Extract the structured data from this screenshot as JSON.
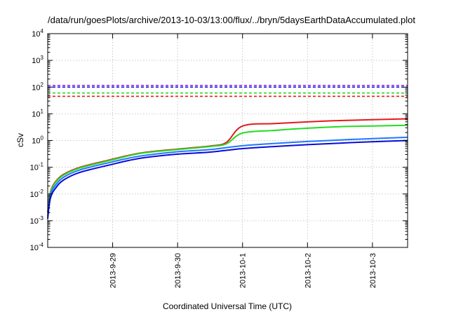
{
  "chart_data": {
    "type": "line",
    "title": "/data/run/goesPlots/archive/2013-10-03/13:00/flux/../bryn/5daysEarthDataAccumulated.plot",
    "xlabel": "Coordinated Universal Time (UTC)",
    "ylabel": "cSv",
    "yscale": "log",
    "ylim": [
      0.0001,
      10000
    ],
    "xlim": [
      "2013-09-28 00:00",
      "2013-10-03 13:00"
    ],
    "grid": true,
    "x_ticks": [
      "2013-9-29",
      "2013-9-30",
      "2013-10-1",
      "2013-10-2",
      "2013-10-3"
    ],
    "y_ticks": [
      {
        "value": 0.0001,
        "base": "10",
        "exp": "-4"
      },
      {
        "value": 0.001,
        "base": "10",
        "exp": "-3"
      },
      {
        "value": 0.01,
        "base": "10",
        "exp": "-2"
      },
      {
        "value": 0.1,
        "base": "10",
        "exp": "-1"
      },
      {
        "value": 1,
        "base": "10",
        "exp": "0"
      },
      {
        "value": 10,
        "base": "10",
        "exp": "1"
      },
      {
        "value": 100,
        "base": "10",
        "exp": "2"
      },
      {
        "value": 1000,
        "base": "10",
        "exp": "3"
      },
      {
        "value": 10000,
        "base": "10",
        "exp": "4"
      }
    ],
    "series": [
      {
        "color": "#e31a1c",
        "style": "solid",
        "points": [
          [
            "2013-09-28 00:00",
            0.002
          ],
          [
            "2013-09-28 01:00",
            0.012
          ],
          [
            "2013-09-28 03:00",
            0.03
          ],
          [
            "2013-09-28 06:00",
            0.055
          ],
          [
            "2013-09-28 12:00",
            0.1
          ],
          [
            "2013-09-29 00:00",
            0.2
          ],
          [
            "2013-09-29 06:00",
            0.28
          ],
          [
            "2013-09-29 12:00",
            0.36
          ],
          [
            "2013-09-30 00:00",
            0.48
          ],
          [
            "2013-09-30 12:00",
            0.62
          ],
          [
            "2013-09-30 18:00",
            0.85
          ],
          [
            "2013-10-01 00:00",
            3.5
          ],
          [
            "2013-10-01 12:00",
            4.3
          ],
          [
            "2013-10-02 00:00",
            5.0
          ],
          [
            "2013-10-02 12:00",
            5.6
          ],
          [
            "2013-10-03 00:00",
            6.0
          ],
          [
            "2013-10-03 13:00",
            6.5
          ]
        ]
      },
      {
        "color": "#22dd22",
        "style": "solid",
        "points": [
          [
            "2013-09-28 00:00",
            0.002
          ],
          [
            "2013-09-28 01:00",
            0.011
          ],
          [
            "2013-09-28 03:00",
            0.028
          ],
          [
            "2013-09-28 06:00",
            0.052
          ],
          [
            "2013-09-28 12:00",
            0.095
          ],
          [
            "2013-09-29 00:00",
            0.19
          ],
          [
            "2013-09-29 06:00",
            0.27
          ],
          [
            "2013-09-29 12:00",
            0.35
          ],
          [
            "2013-09-30 00:00",
            0.46
          ],
          [
            "2013-09-30 12:00",
            0.6
          ],
          [
            "2013-09-30 18:00",
            0.75
          ],
          [
            "2013-10-01 00:00",
            1.9
          ],
          [
            "2013-10-01 12:00",
            2.4
          ],
          [
            "2013-10-02 00:00",
            2.9
          ],
          [
            "2013-10-02 12:00",
            3.3
          ],
          [
            "2013-10-03 00:00",
            3.5
          ],
          [
            "2013-10-03 13:00",
            3.7
          ]
        ]
      },
      {
        "color": "#1e78ff",
        "style": "solid",
        "points": [
          [
            "2013-09-28 00:00",
            0.0015
          ],
          [
            "2013-09-28 01:00",
            0.009
          ],
          [
            "2013-09-28 03:00",
            0.022
          ],
          [
            "2013-09-28 06:00",
            0.043
          ],
          [
            "2013-09-28 12:00",
            0.08
          ],
          [
            "2013-09-29 00:00",
            0.16
          ],
          [
            "2013-09-29 06:00",
            0.22
          ],
          [
            "2013-09-29 12:00",
            0.28
          ],
          [
            "2013-09-30 00:00",
            0.38
          ],
          [
            "2013-09-30 12:00",
            0.46
          ],
          [
            "2013-10-01 00:00",
            0.64
          ],
          [
            "2013-10-01 12:00",
            0.78
          ],
          [
            "2013-10-02 00:00",
            0.92
          ],
          [
            "2013-10-02 12:00",
            1.05
          ],
          [
            "2013-10-03 00:00",
            1.18
          ],
          [
            "2013-10-03 13:00",
            1.32
          ]
        ]
      },
      {
        "color": "#0a0adc",
        "style": "solid",
        "points": [
          [
            "2013-09-28 00:00",
            0.0012
          ],
          [
            "2013-09-28 01:00",
            0.007
          ],
          [
            "2013-09-28 03:00",
            0.017
          ],
          [
            "2013-09-28 06:00",
            0.034
          ],
          [
            "2013-09-28 12:00",
            0.065
          ],
          [
            "2013-09-29 00:00",
            0.13
          ],
          [
            "2013-09-29 06:00",
            0.18
          ],
          [
            "2013-09-29 12:00",
            0.23
          ],
          [
            "2013-09-30 00:00",
            0.31
          ],
          [
            "2013-09-30 12:00",
            0.37
          ],
          [
            "2013-10-01 00:00",
            0.5
          ],
          [
            "2013-10-01 12:00",
            0.6
          ],
          [
            "2013-10-02 00:00",
            0.7
          ],
          [
            "2013-10-02 12:00",
            0.8
          ],
          [
            "2013-10-03 00:00",
            0.9
          ],
          [
            "2013-10-03 13:00",
            1.0
          ]
        ]
      }
    ],
    "reference_lines": [
      {
        "value": 115,
        "color": "#8a2be2",
        "style": "dashed"
      },
      {
        "value": 100,
        "color": "#0a0adc",
        "style": "dashed"
      },
      {
        "value": 60,
        "color": "#22dd22",
        "style": "dashed"
      },
      {
        "value": 45,
        "color": "#e31a1c",
        "style": "dashed"
      }
    ]
  }
}
